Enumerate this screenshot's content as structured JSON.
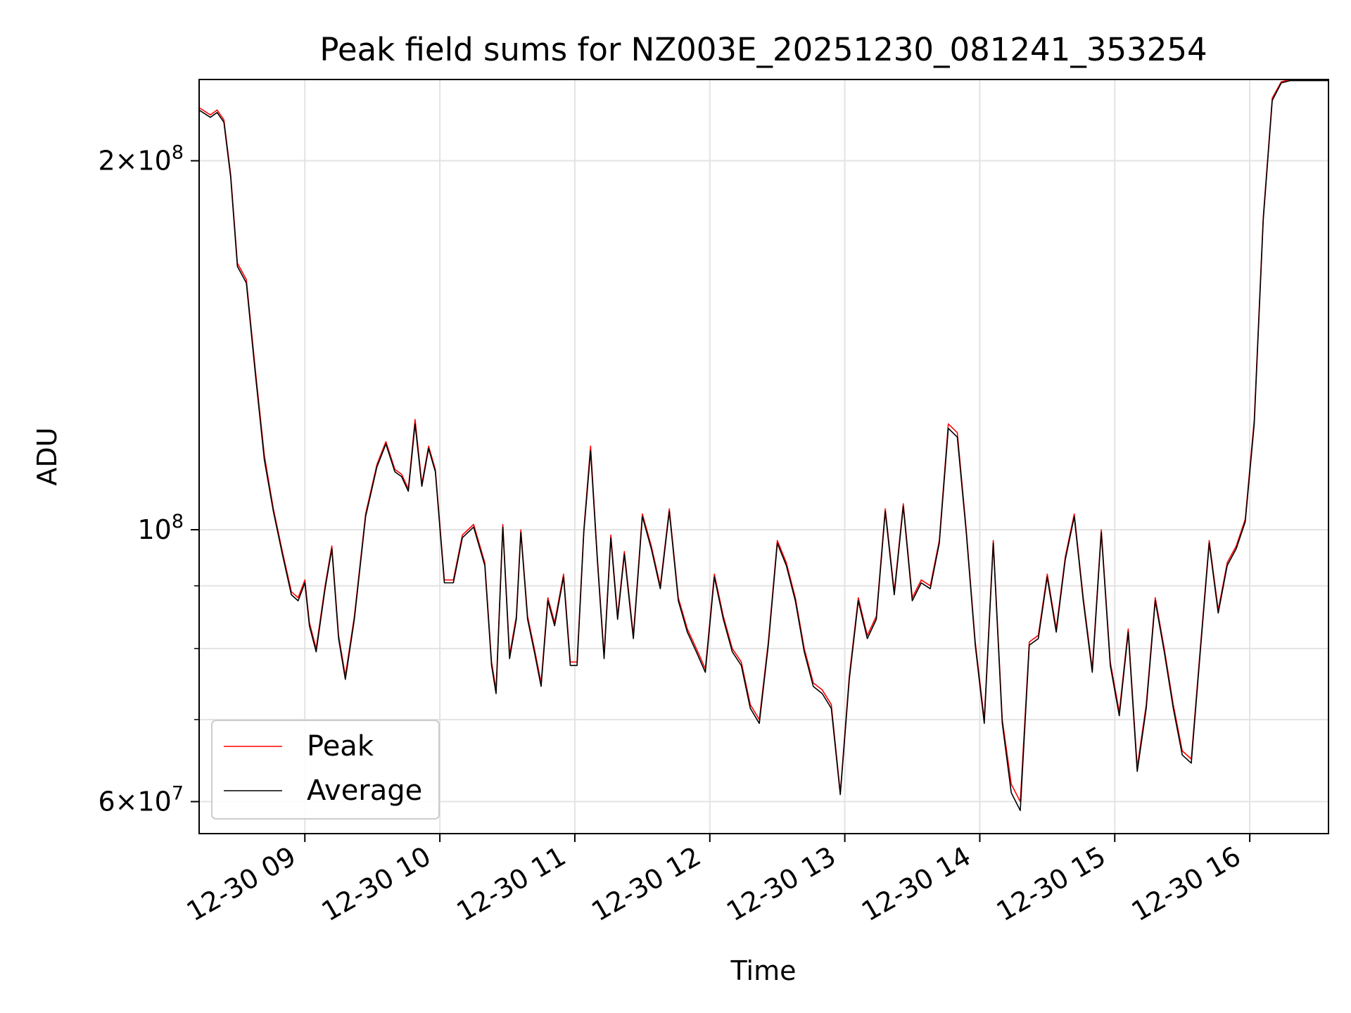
{
  "chart_data": {
    "type": "line",
    "title": "Peak field sums for NZ003E_20251230_081241_353254",
    "xlabel": "Time",
    "ylabel": "ADU",
    "yscale": "log",
    "x_range": [
      "12-30 08:13",
      "12-30 16:35"
    ],
    "ylim": [
      56500000,
      233000000
    ],
    "x_ticks": [
      "12-30 09",
      "12-30 10",
      "12-30 11",
      "12-30 12",
      "12-30 13",
      "12-30 14",
      "12-30 15",
      "12-30 16"
    ],
    "y_ticks": [
      {
        "label_base": "6×10",
        "label_exp": "7",
        "value": 60000000
      },
      {
        "label_base": "10",
        "label_exp": "8",
        "value": 100000000
      },
      {
        "label_base": "2×10",
        "label_exp": "8",
        "value": 200000000
      }
    ],
    "y_minor_ticks": [
      70000000,
      80000000,
      90000000
    ],
    "grid": true,
    "legend_position": "lower-left",
    "series": [
      {
        "name": "Peak",
        "color": "#ff0000",
        "x": [
          "12-30 08:13",
          "12-30 08:18",
          "12-30 08:21",
          "12-30 08:24",
          "12-30 08:27",
          "12-30 08:30",
          "12-30 08:34",
          "12-30 08:38",
          "12-30 08:42",
          "12-30 08:46",
          "12-30 08:50",
          "12-30 08:54",
          "12-30 08:57",
          "12-30 09:00",
          "12-30 09:02",
          "12-30 09:05",
          "12-30 09:09",
          "12-30 09:12",
          "12-30 09:15",
          "12-30 09:18",
          "12-30 09:22",
          "12-30 09:27",
          "12-30 09:32",
          "12-30 09:36",
          "12-30 09:40",
          "12-30 09:43",
          "12-30 09:46",
          "12-30 09:49",
          "12-30 09:52",
          "12-30 09:55",
          "12-30 09:58",
          "12-30 10:02",
          "12-30 10:06",
          "12-30 10:10",
          "12-30 10:15",
          "12-30 10:20",
          "12-30 10:23",
          "12-30 10:25",
          "12-30 10:28",
          "12-30 10:31",
          "12-30 10:34",
          "12-30 10:36",
          "12-30 10:39",
          "12-30 10:42",
          "12-30 10:45",
          "12-30 10:48",
          "12-30 10:51",
          "12-30 10:55",
          "12-30 10:58",
          "12-30 11:01",
          "12-30 11:04",
          "12-30 11:07",
          "12-30 11:10",
          "12-30 11:13",
          "12-30 11:16",
          "12-30 11:19",
          "12-30 11:22",
          "12-30 11:26",
          "12-30 11:30",
          "12-30 11:34",
          "12-30 11:38",
          "12-30 11:42",
          "12-30 11:46",
          "12-30 11:50",
          "12-30 11:54",
          "12-30 11:58",
          "12-30 12:02",
          "12-30 12:06",
          "12-30 12:10",
          "12-30 12:14",
          "12-30 12:18",
          "12-30 12:22",
          "12-30 12:26",
          "12-30 12:30",
          "12-30 12:34",
          "12-30 12:38",
          "12-30 12:42",
          "12-30 12:46",
          "12-30 12:50",
          "12-30 12:54",
          "12-30 12:58",
          "12-30 13:02",
          "12-30 13:06",
          "12-30 13:10",
          "12-30 13:14",
          "12-30 13:18",
          "12-30 13:22",
          "12-30 13:26",
          "12-30 13:30",
          "12-30 13:34",
          "12-30 13:38",
          "12-30 13:42",
          "12-30 13:46",
          "12-30 13:50",
          "12-30 13:54",
          "12-30 13:58",
          "12-30 14:02",
          "12-30 14:06",
          "12-30 14:10",
          "12-30 14:14",
          "12-30 14:18",
          "12-30 14:22",
          "12-30 14:26",
          "12-30 14:30",
          "12-30 14:34",
          "12-30 14:38",
          "12-30 14:42",
          "12-30 14:46",
          "12-30 14:50",
          "12-30 14:54",
          "12-30 14:58",
          "12-30 15:02",
          "12-30 15:06",
          "12-30 15:10",
          "12-30 15:14",
          "12-30 15:18",
          "12-30 15:22",
          "12-30 15:26",
          "12-30 15:30",
          "12-30 15:34",
          "12-30 15:38",
          "12-30 15:42",
          "12-30 15:46",
          "12-30 15:50",
          "12-30 15:54",
          "12-30 15:58",
          "12-30 16:02",
          "12-30 16:06",
          "12-30 16:10",
          "12-30 16:14",
          "12-30 16:18",
          "12-30 16:22",
          "12-30 16:26",
          "12-30 16:30",
          "12-30 16:35"
        ],
        "values": [
          221000000,
          218000000,
          220000000,
          216000000,
          195000000,
          165000000,
          160000000,
          135000000,
          115000000,
          104000000,
          96000000,
          89000000,
          88000000,
          91000000,
          84000000,
          80000000,
          90000000,
          97000000,
          82000000,
          76000000,
          85000000,
          103000000,
          113000000,
          118000000,
          112000000,
          111000000,
          108000000,
          123000000,
          109000000,
          117000000,
          112000000,
          91000000,
          91000000,
          99000000,
          101000000,
          94000000,
          78000000,
          74000000,
          101000000,
          79000000,
          85000000,
          100000000,
          85000000,
          80000000,
          75000000,
          88000000,
          84000000,
          92000000,
          78000000,
          78000000,
          100000000,
          117000000,
          95000000,
          79000000,
          99000000,
          85000000,
          96000000,
          82000000,
          103000000,
          97000000,
          90000000,
          104000000,
          88000000,
          83000000,
          80000000,
          77000000,
          92000000,
          85000000,
          80000000,
          78000000,
          72000000,
          70000000,
          81000000,
          98000000,
          94000000,
          88000000,
          80000000,
          75000000,
          74000000,
          72000000,
          61000000,
          76000000,
          88000000,
          82000000,
          85000000,
          104000000,
          89000000,
          105000000,
          88000000,
          91000000,
          90000000,
          98000000,
          122000000,
          120000000,
          100000000,
          81000000,
          70000000,
          98000000,
          70000000,
          62000000,
          60000000,
          81000000,
          82000000,
          92000000,
          83000000,
          95000000,
          103000000,
          88000000,
          77000000,
          100000000,
          78000000,
          71000000,
          83000000,
          64000000,
          72000000,
          88000000,
          80000000,
          72000000,
          66000000,
          65000000,
          80000000,
          98000000,
          86000000,
          94000000,
          97000000,
          102000000,
          123000000,
          180000000,
          225000000,
          232000000,
          233000000,
          233000000,
          233000000,
          233000000,
          233000000
        ]
      },
      {
        "name": "Average",
        "color": "#000000",
        "x": [
          "12-30 08:13",
          "12-30 08:18",
          "12-30 08:21",
          "12-30 08:24",
          "12-30 08:27",
          "12-30 08:30",
          "12-30 08:34",
          "12-30 08:38",
          "12-30 08:42",
          "12-30 08:46",
          "12-30 08:50",
          "12-30 08:54",
          "12-30 08:57",
          "12-30 09:00",
          "12-30 09:02",
          "12-30 09:05",
          "12-30 09:09",
          "12-30 09:12",
          "12-30 09:15",
          "12-30 09:18",
          "12-30 09:22",
          "12-30 09:27",
          "12-30 09:32",
          "12-30 09:36",
          "12-30 09:40",
          "12-30 09:43",
          "12-30 09:46",
          "12-30 09:49",
          "12-30 09:52",
          "12-30 09:55",
          "12-30 09:58",
          "12-30 10:02",
          "12-30 10:06",
          "12-30 10:10",
          "12-30 10:15",
          "12-30 10:20",
          "12-30 10:23",
          "12-30 10:25",
          "12-30 10:28",
          "12-30 10:31",
          "12-30 10:34",
          "12-30 10:36",
          "12-30 10:39",
          "12-30 10:42",
          "12-30 10:45",
          "12-30 10:48",
          "12-30 10:51",
          "12-30 10:55",
          "12-30 10:58",
          "12-30 11:01",
          "12-30 11:04",
          "12-30 11:07",
          "12-30 11:10",
          "12-30 11:13",
          "12-30 11:16",
          "12-30 11:19",
          "12-30 11:22",
          "12-30 11:26",
          "12-30 11:30",
          "12-30 11:34",
          "12-30 11:38",
          "12-30 11:42",
          "12-30 11:46",
          "12-30 11:50",
          "12-30 11:54",
          "12-30 11:58",
          "12-30 12:02",
          "12-30 12:06",
          "12-30 12:10",
          "12-30 12:14",
          "12-30 12:18",
          "12-30 12:22",
          "12-30 12:26",
          "12-30 12:30",
          "12-30 12:34",
          "12-30 12:38",
          "12-30 12:42",
          "12-30 12:46",
          "12-30 12:50",
          "12-30 12:54",
          "12-30 12:58",
          "12-30 13:02",
          "12-30 13:06",
          "12-30 13:10",
          "12-30 13:14",
          "12-30 13:18",
          "12-30 13:22",
          "12-30 13:26",
          "12-30 13:30",
          "12-30 13:34",
          "12-30 13:38",
          "12-30 13:42",
          "12-30 13:46",
          "12-30 13:50",
          "12-30 13:54",
          "12-30 13:58",
          "12-30 14:02",
          "12-30 14:06",
          "12-30 14:10",
          "12-30 14:14",
          "12-30 14:18",
          "12-30 14:22",
          "12-30 14:26",
          "12-30 14:30",
          "12-30 14:34",
          "12-30 14:38",
          "12-30 14:42",
          "12-30 14:46",
          "12-30 14:50",
          "12-30 14:54",
          "12-30 14:58",
          "12-30 15:02",
          "12-30 15:06",
          "12-30 15:10",
          "12-30 15:14",
          "12-30 15:18",
          "12-30 15:22",
          "12-30 15:26",
          "12-30 15:30",
          "12-30 15:34",
          "12-30 15:38",
          "12-30 15:42",
          "12-30 15:46",
          "12-30 15:50",
          "12-30 15:54",
          "12-30 15:58",
          "12-30 16:02",
          "12-30 16:06",
          "12-30 16:10",
          "12-30 16:14",
          "12-30 16:18",
          "12-30 16:22",
          "12-30 16:26",
          "12-30 16:30",
          "12-30 16:35"
        ],
        "values": [
          220000000,
          217000000,
          219000000,
          215000000,
          194000000,
          164000000,
          159000000,
          134000000,
          114000000,
          103500000,
          95500000,
          88500000,
          87500000,
          90500000,
          83500000,
          79500000,
          89500000,
          96500000,
          81500000,
          75500000,
          84500000,
          102500000,
          112500000,
          117500000,
          111500000,
          110500000,
          107500000,
          122000000,
          108500000,
          116500000,
          111500000,
          90500000,
          90500000,
          98500000,
          100500000,
          93500000,
          77500000,
          73500000,
          100500000,
          78500000,
          84500000,
          99500000,
          84500000,
          79500000,
          74500000,
          87500000,
          83500000,
          91500000,
          77500000,
          77500000,
          99500000,
          116000000,
          94500000,
          78500000,
          98500000,
          84500000,
          95500000,
          81500000,
          102500000,
          96500000,
          89500000,
          103500000,
          87500000,
          82500000,
          79500000,
          76500000,
          91500000,
          84500000,
          79500000,
          77500000,
          71500000,
          69500000,
          80500000,
          97500000,
          93500000,
          87500000,
          79500000,
          74500000,
          73500000,
          71500000,
          60800000,
          75500000,
          87500000,
          81500000,
          84500000,
          103500000,
          88500000,
          104500000,
          87500000,
          90500000,
          89500000,
          97500000,
          121000000,
          119000000,
          99500000,
          80500000,
          69500000,
          97500000,
          69500000,
          61000000,
          59000000,
          80500000,
          81500000,
          91500000,
          82500000,
          94500000,
          102500000,
          87500000,
          76500000,
          99500000,
          77500000,
          70500000,
          82500000,
          63500000,
          71500000,
          87500000,
          79500000,
          71500000,
          65500000,
          64500000,
          79500000,
          97500000,
          85500000,
          93500000,
          96500000,
          101500000,
          122000000,
          179000000,
          224000000,
          231500000,
          232500000,
          232500000,
          232500000,
          232500000,
          232500000
        ]
      }
    ]
  }
}
